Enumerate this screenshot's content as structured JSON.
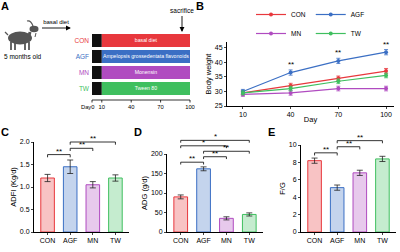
{
  "diagram": {
    "panel": "A",
    "age": "5 months old",
    "pre_diet": "basal diet",
    "end": "sacrifice",
    "day_ticks": [
      {
        "value": 0,
        "label": "Day0"
      },
      10,
      40,
      70,
      100
    ],
    "groups": [
      {
        "name": "CON",
        "treatment": "basal diet",
        "color": "#e8383d"
      },
      {
        "name": "AGF",
        "treatment": "Ampelopsis grossedentata flavonoids",
        "color": "#3b6fc4"
      },
      {
        "name": "MN",
        "treatment": "Monensin",
        "color": "#b04bc0"
      },
      {
        "name": "TW",
        "treatment": "Tween 80",
        "color": "#3fbf5f"
      }
    ]
  },
  "chart_data": [
    {
      "panel": "B",
      "type": "line",
      "x": [
        10,
        40,
        70,
        100
      ],
      "xlabel": "Day",
      "ylabel": "Body weight",
      "xlim": [
        0,
        105
      ],
      "xticks": [
        10,
        40,
        70,
        100
      ],
      "ylim": [
        25,
        47
      ],
      "yticks": [
        25,
        30,
        35,
        40,
        45
      ],
      "legend": "top",
      "marker": "circle",
      "series": [
        {
          "name": "CON",
          "color": "#e8383d",
          "values": [
            29.5,
            32,
            34.5,
            37
          ],
          "errors": [
            0.7,
            0.8,
            0.8,
            0.9
          ]
        },
        {
          "name": "AGF",
          "color": "#3b6fc4",
          "values": [
            30,
            36.5,
            40.5,
            43.5
          ],
          "errors": [
            0.7,
            0.9,
            0.9,
            0.9
          ]
        },
        {
          "name": "MN",
          "color": "#b04bc0",
          "values": [
            29,
            29.5,
            31,
            31
          ],
          "errors": [
            0.7,
            0.8,
            0.8,
            0.8
          ]
        },
        {
          "name": "TW",
          "color": "#3fbf5f",
          "values": [
            29.5,
            31,
            33.5,
            35.5
          ],
          "errors": [
            0.7,
            0.8,
            0.8,
            0.8
          ]
        }
      ],
      "annotations": [
        {
          "x": 40,
          "text": "**"
        },
        {
          "x": 70,
          "text": "**"
        },
        {
          "x": 100,
          "text": "**"
        }
      ]
    },
    {
      "panel": "C",
      "type": "bar",
      "ylabel": "ADFI (Kg/d)",
      "categories": [
        "CON",
        "AGF",
        "MN",
        "TW"
      ],
      "values": [
        1.2,
        1.45,
        1.05,
        1.2
      ],
      "errors": [
        0.08,
        0.15,
        0.07,
        0.07
      ],
      "colors": [
        "#e8383d",
        "#3b6fc4",
        "#b04bc0",
        "#3fbf5f"
      ],
      "ylim": [
        0,
        2
      ],
      "yticks": [
        {
          "value": 0,
          "label": "0.0"
        },
        0.5,
        {
          "value": 1,
          "label": "1.0"
        },
        1.5,
        {
          "value": 2,
          "label": "2.0"
        }
      ],
      "brackets": [
        {
          "from": "CON",
          "to": "AGF",
          "text": "**"
        },
        {
          "from": "AGF",
          "to": "MN",
          "text": "**"
        },
        {
          "from": "AGF",
          "to": "TW",
          "text": "**"
        }
      ]
    },
    {
      "panel": "D",
      "type": "bar",
      "ylabel": "ADG (g/d)",
      "categories": [
        "CON",
        "AGF",
        "MN",
        "TW"
      ],
      "values": [
        90,
        162,
        35,
        45
      ],
      "errors": [
        5,
        5,
        4,
        4
      ],
      "colors": [
        "#e8383d",
        "#3b6fc4",
        "#b04bc0",
        "#3fbf5f"
      ],
      "ylim": [
        0,
        200
      ],
      "yticks": [
        0,
        50,
        100,
        150,
        200
      ],
      "brackets": [
        {
          "from": "CON",
          "to": "AGF",
          "text": "**"
        },
        {
          "from": "AGF",
          "to": "MN",
          "text": "**"
        },
        {
          "from": "AGF",
          "to": "TW",
          "text": "**"
        },
        {
          "from": "CON",
          "to": "MN",
          "text": "*"
        },
        {
          "from": "CON",
          "to": "TW",
          "text": "*"
        }
      ]
    },
    {
      "panel": "E",
      "type": "bar",
      "ylabel": "F/G",
      "categories": [
        "CON",
        "AGF",
        "MN",
        "TW"
      ],
      "values": [
        8.2,
        5.1,
        6.8,
        8.4
      ],
      "errors": [
        0.3,
        0.3,
        0.3,
        0.3
      ],
      "colors": [
        "#e8383d",
        "#3b6fc4",
        "#b04bc0",
        "#3fbf5f"
      ],
      "ylim": [
        0,
        10
      ],
      "yticks": [
        0,
        2,
        4,
        6,
        8,
        10
      ],
      "brackets": [
        {
          "from": "CON",
          "to": "AGF",
          "text": "**"
        },
        {
          "from": "AGF",
          "to": "MN",
          "text": "**"
        },
        {
          "from": "AGF",
          "to": "TW",
          "text": "**"
        }
      ]
    }
  ]
}
